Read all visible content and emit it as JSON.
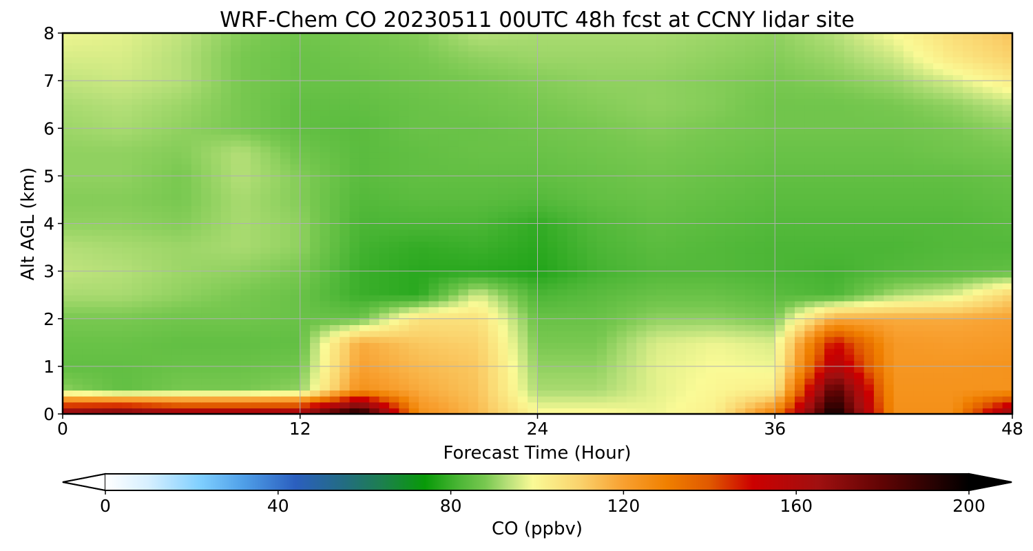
{
  "chart_data": {
    "type": "heatmap",
    "title": "WRF-Chem CO  20230511 00UTC 48h fcst at CCNY lidar site",
    "xlabel": "Forecast Time (Hour)",
    "ylabel": "Alt AGL (km)",
    "xlim": [
      0,
      48
    ],
    "ylim": [
      0,
      8
    ],
    "x_ticks": [
      0,
      12,
      24,
      36,
      48
    ],
    "y_ticks": [
      0,
      1,
      2,
      3,
      4,
      5,
      6,
      7,
      8
    ],
    "grid": true,
    "colorbar": {
      "label": "CO  (ppbv)",
      "range": [
        0,
        200
      ],
      "ticks": [
        0,
        40,
        80,
        120,
        160,
        200
      ],
      "extend": "both",
      "orientation": "horizontal",
      "placement": "bottom"
    },
    "x_hours": [
      0,
      3,
      6,
      9,
      12,
      15,
      18,
      21,
      24,
      27,
      30,
      33,
      36,
      39,
      42,
      45,
      48
    ],
    "y_km": [
      0,
      0.5,
      1,
      1.5,
      2,
      2.5,
      3,
      3.5,
      4,
      4.5,
      5,
      5.5,
      6,
      6.5,
      7,
      7.5,
      8
    ],
    "co_ppbv": [
      [
        175,
        180,
        170,
        170,
        170,
        200,
        125,
        115,
        100,
        100,
        98,
        102,
        130,
        200,
        125,
        125,
        170
      ],
      [
        90,
        85,
        88,
        88,
        90,
        125,
        118,
        113,
        92,
        92,
        97,
        100,
        103,
        185,
        124,
        124,
        124
      ],
      [
        85,
        85,
        86,
        86,
        87,
        120,
        115,
        112,
        90,
        90,
        97,
        99,
        98,
        160,
        123,
        123,
        124
      ],
      [
        86,
        86,
        85,
        85,
        85,
        118,
        112,
        110,
        88,
        88,
        96,
        98,
        96,
        150,
        122,
        121,
        122
      ],
      [
        88,
        88,
        87,
        87,
        86,
        86,
        106,
        106,
        86,
        86,
        90,
        90,
        88,
        118,
        118,
        118,
        120
      ],
      [
        92,
        92,
        90,
        88,
        86,
        80,
        78,
        96,
        82,
        84,
        86,
        86,
        84,
        82,
        92,
        96,
        110
      ],
      [
        94,
        93,
        91,
        90,
        88,
        80,
        78,
        78,
        77,
        81,
        83,
        83,
        82,
        81,
        83,
        84,
        85
      ],
      [
        93,
        92,
        91,
        92,
        90,
        81,
        79,
        80,
        78,
        82,
        84,
        83,
        82,
        82,
        82,
        83,
        83
      ],
      [
        90,
        90,
        89,
        92,
        90,
        82,
        82,
        82,
        79,
        83,
        85,
        84,
        83,
        83,
        83,
        83,
        84
      ],
      [
        89,
        89,
        88,
        92,
        89,
        83,
        84,
        84,
        83,
        85,
        86,
        85,
        84,
        84,
        84,
        84,
        85
      ],
      [
        90,
        90,
        88,
        93,
        89,
        84,
        85,
        85,
        85,
        86,
        87,
        86,
        85,
        85,
        85,
        85,
        86
      ],
      [
        90,
        90,
        89,
        93,
        87,
        84,
        85,
        86,
        86,
        87,
        88,
        87,
        86,
        86,
        86,
        87,
        88
      ],
      [
        91,
        92,
        90,
        88,
        85,
        84,
        86,
        86,
        87,
        88,
        89,
        88,
        87,
        87,
        87,
        88,
        90
      ],
      [
        92,
        93,
        91,
        88,
        85,
        85,
        86,
        87,
        88,
        89,
        90,
        89,
        87,
        87,
        88,
        90,
        94
      ],
      [
        94,
        95,
        93,
        88,
        86,
        86,
        87,
        88,
        89,
        90,
        90,
        89,
        88,
        89,
        91,
        96,
        103
      ],
      [
        96,
        96,
        93,
        88,
        86,
        87,
        88,
        90,
        91,
        91,
        91,
        90,
        89,
        91,
        95,
        104,
        110
      ],
      [
        98,
        97,
        94,
        89,
        87,
        88,
        89,
        93,
        92,
        92,
        92,
        91,
        90,
        93,
        99,
        107,
        113
      ]
    ]
  }
}
